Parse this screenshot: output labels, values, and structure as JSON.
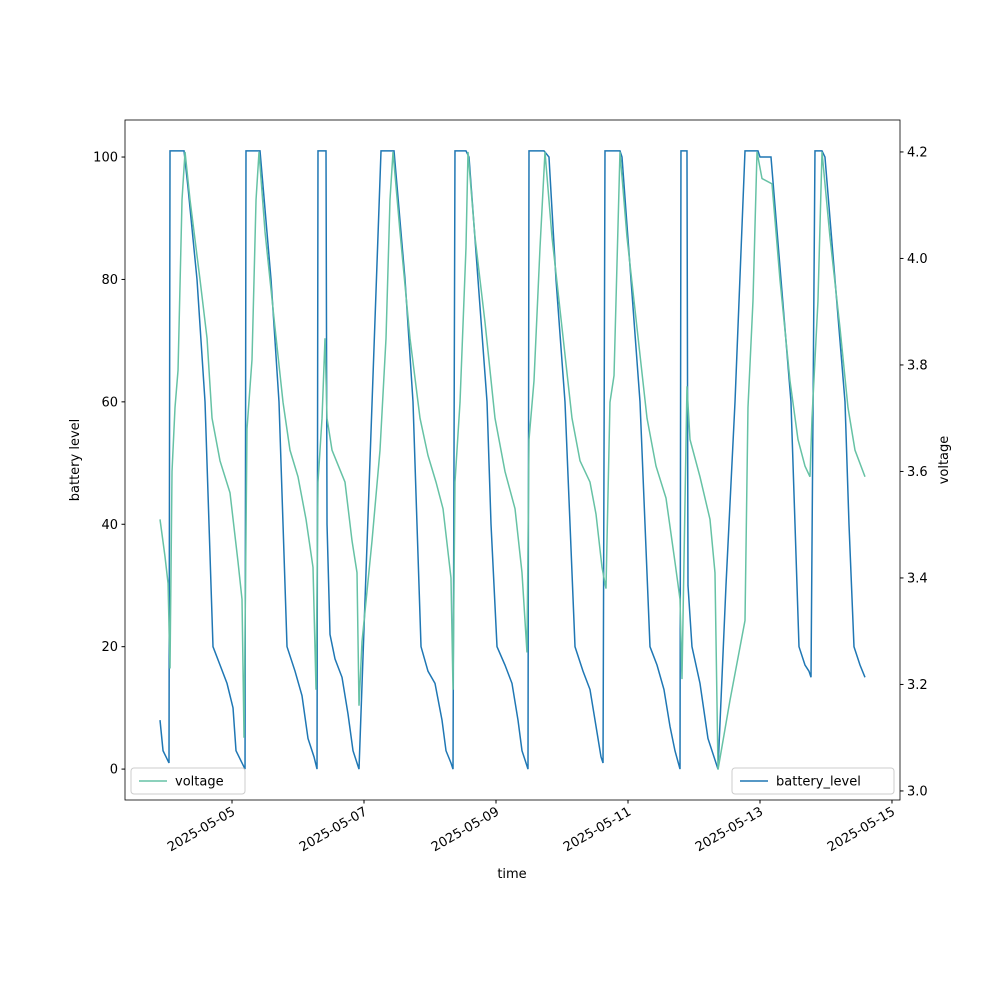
{
  "chart_data": {
    "type": "line",
    "xlabel": "time",
    "ylabel": "battery level",
    "y2label": "voltage",
    "xlim": [
      "2025-05-03T09:05",
      "2025-05-15T02:55"
    ],
    "xticks": [
      "2025-05-05",
      "2025-05-07",
      "2025-05-09",
      "2025-05-11",
      "2025-05-13",
      "2025-05-15"
    ],
    "ylim": [
      -5.05,
      106.05
    ],
    "yticks": [
      0,
      20,
      40,
      60,
      80,
      100
    ],
    "y2lim": [
      2.983,
      4.26
    ],
    "y2ticks": [
      {
        "value": 3,
        "label": "3.0"
      },
      3.2,
      3.4,
      3.6,
      3.8,
      {
        "value": 4,
        "label": "4.0"
      },
      4.2
    ],
    "series": [
      {
        "name": "battery_level",
        "color": "#1f77b4",
        "axis": "y",
        "legend_loc": "lower right",
        "x": [
          "2025-05-03T21:49",
          "2025-05-03T22:55",
          "2025-05-04T00:00",
          "2025-05-04T01:05",
          "2025-05-04T01:27",
          "2025-05-04T06:33",
          "2025-05-04T08:00",
          "2025-05-04T11:16",
          "2025-05-04T14:11",
          "2025-05-04T15:38",
          "2025-05-04T17:05",
          "2025-05-04T19:38",
          "2025-05-04T22:11",
          "2025-05-05T00:22",
          "2025-05-05T01:27",
          "2025-05-05T03:38",
          "2025-05-05T04:44",
          "2025-05-05T05:05",
          "2025-05-05T10:11",
          "2025-05-05T14:11",
          "2025-05-05T17:05",
          "2025-05-05T18:33",
          "2025-05-05T20:00",
          "2025-05-05T22:55",
          "2025-05-06T01:27",
          "2025-05-06T03:38",
          "2025-05-06T05:49",
          "2025-05-06T06:55",
          "2025-05-06T07:16",
          "2025-05-06T10:11",
          "2025-05-06T10:33",
          "2025-05-06T11:38",
          "2025-05-06T13:27",
          "2025-05-06T16:00",
          "2025-05-06T18:11",
          "2025-05-06T20:00",
          "2025-05-06T21:27",
          "2025-05-06T22:11",
          "2025-05-07T06:11",
          "2025-05-07T10:55",
          "2025-05-07T14:55",
          "2025-05-07T17:49",
          "2025-05-07T19:16",
          "2025-05-07T20:44",
          "2025-05-07T23:16",
          "2025-05-08T01:49",
          "2025-05-08T04:22",
          "2025-05-08T05:49",
          "2025-05-08T07:38",
          "2025-05-08T08:22",
          "2025-05-08T09:05",
          "2025-05-08T13:05",
          "2025-05-08T14:11",
          "2025-05-08T17:27",
          "2025-05-08T20:44",
          "2025-05-08T22:11",
          "2025-05-09T00:22",
          "2025-05-09T03:16",
          "2025-05-09T05:49",
          "2025-05-09T08:00",
          "2025-05-09T09:27",
          "2025-05-09T10:55",
          "2025-05-09T11:38",
          "2025-05-09T12:00",
          "2025-05-09T17:27",
          "2025-05-09T19:16",
          "2025-05-09T21:49",
          "2025-05-10T01:05",
          "2025-05-10T02:55",
          "2025-05-10T04:44",
          "2025-05-10T07:38",
          "2025-05-10T10:11",
          "2025-05-10T12:44",
          "2025-05-10T14:11",
          "2025-05-10T14:55",
          "2025-05-10T15:38",
          "2025-05-10T21:05",
          "2025-05-10T21:49",
          "2025-05-11T01:05",
          "2025-05-11T04:22",
          "2025-05-11T06:11",
          "2025-05-11T08:00",
          "2025-05-11T10:33",
          "2025-05-11T13:05",
          "2025-05-11T15:16",
          "2025-05-11T17:05",
          "2025-05-11T18:55",
          "2025-05-11T19:16",
          "2025-05-11T21:27",
          "2025-05-11T21:49",
          "2025-05-11T23:16",
          "2025-05-12T02:11",
          "2025-05-12T05:05",
          "2025-05-12T08:00",
          "2025-05-12T08:44",
          "2025-05-12T11:38",
          "2025-05-12T14:55",
          "2025-05-12T18:33",
          "2025-05-12T23:16",
          "2025-05-13T00:00",
          "2025-05-13T04:00",
          "2025-05-13T07:38",
          "2025-05-13T11:16",
          "2025-05-13T12:44",
          "2025-05-13T14:11",
          "2025-05-13T16:22",
          "2025-05-13T17:49",
          "2025-05-13T18:33",
          "2025-05-13T20:00",
          "2025-05-13T22:33",
          "2025-05-13T23:38",
          "2025-05-14T03:16",
          "2025-05-14T06:55",
          "2025-05-14T08:22",
          "2025-05-14T10:11",
          "2025-05-14T12:22",
          "2025-05-14T14:11"
        ],
        "values": [
          8,
          3,
          2,
          1,
          101,
          101,
          95,
          80,
          60,
          40,
          20,
          17,
          14,
          10,
          3,
          1,
          0,
          101,
          101,
          80,
          60,
          40,
          20,
          16,
          12,
          5,
          2,
          0,
          101,
          101,
          40,
          22,
          18,
          15,
          9,
          3,
          1,
          0,
          101,
          101,
          80,
          60,
          40,
          20,
          16,
          14,
          8,
          3,
          1,
          0,
          101,
          101,
          100,
          80,
          60,
          40,
          20,
          17,
          14,
          8,
          3,
          1,
          0,
          101,
          101,
          100,
          80,
          60,
          40,
          20,
          16,
          13,
          6,
          2,
          1,
          101,
          101,
          100,
          80,
          60,
          40,
          20,
          17,
          13,
          7,
          3,
          0,
          101,
          101,
          30,
          20,
          14,
          5,
          1,
          0,
          30,
          60,
          101,
          101,
          100,
          100,
          80,
          60,
          40,
          20,
          17,
          16,
          15,
          101,
          101,
          100,
          80,
          60,
          40,
          20,
          17,
          15
        ]
      },
      {
        "name": "voltage",
        "color": "#66c2a5",
        "axis": "y2",
        "legend_loc": "lower left",
        "x": [
          "2025-05-03T21:49",
          "2025-05-03T23:38",
          "2025-05-04T00:44",
          "2025-05-04T01:27",
          "2025-05-04T02:11",
          "2025-05-04T03:16",
          "2025-05-04T04:22",
          "2025-05-04T05:49",
          "2025-05-04T06:55",
          "2025-05-04T08:44",
          "2025-05-04T12:22",
          "2025-05-04T14:55",
          "2025-05-04T16:44",
          "2025-05-04T19:38",
          "2025-05-04T23:16",
          "2025-05-05T02:11",
          "2025-05-05T03:38",
          "2025-05-05T04:22",
          "2025-05-05T05:27",
          "2025-05-05T07:16",
          "2025-05-05T08:44",
          "2025-05-05T09:49",
          "2025-05-05T12:00",
          "2025-05-05T15:38",
          "2025-05-05T18:33",
          "2025-05-05T21:05",
          "2025-05-06T00:00",
          "2025-05-06T02:55",
          "2025-05-06T05:27",
          "2025-05-06T06:33",
          "2025-05-06T07:16",
          "2025-05-06T08:44",
          "2025-05-06T09:49",
          "2025-05-06T10:33",
          "2025-05-06T12:22",
          "2025-05-06T17:05",
          "2025-05-06T19:38",
          "2025-05-06T21:27",
          "2025-05-06T22:11",
          "2025-05-06T23:16",
          "2025-05-07T02:55",
          "2025-05-07T05:49",
          "2025-05-07T08:00",
          "2025-05-07T09:27",
          "2025-05-07T10:33",
          "2025-05-07T13:05",
          "2025-05-07T16:44",
          "2025-05-07T20:22",
          "2025-05-07T23:16",
          "2025-05-08T02:11",
          "2025-05-08T04:44",
          "2025-05-08T07:38",
          "2025-05-08T08:22",
          "2025-05-08T09:05",
          "2025-05-08T10:55",
          "2025-05-08T13:05",
          "2025-05-08T13:49",
          "2025-05-08T16:22",
          "2025-05-08T20:00",
          "2025-05-08T23:38",
          "2025-05-09T03:16",
          "2025-05-09T06:55",
          "2025-05-09T09:27",
          "2025-05-09T11:16",
          "2025-05-09T12:00",
          "2025-05-09T13:49",
          "2025-05-09T16:00",
          "2025-05-09T17:49",
          "2025-05-09T20:22",
          "2025-05-10T00:00",
          "2025-05-10T03:38",
          "2025-05-10T06:33",
          "2025-05-10T10:11",
          "2025-05-10T12:22",
          "2025-05-10T14:33",
          "2025-05-10T16:00",
          "2025-05-10T17:27",
          "2025-05-10T18:55",
          "2025-05-10T21:05",
          "2025-05-10T23:38",
          "2025-05-11T03:16",
          "2025-05-11T06:55",
          "2025-05-11T10:11",
          "2025-05-11T13:49",
          "2025-05-11T17:05",
          "2025-05-11T18:55",
          "2025-05-11T19:38",
          "2025-05-11T21:27",
          "2025-05-11T22:33",
          "2025-05-12T02:11",
          "2025-05-12T05:49",
          "2025-05-12T07:38",
          "2025-05-12T08:44",
          "2025-05-12T13:05",
          "2025-05-12T18:33",
          "2025-05-12T19:38",
          "2025-05-12T21:27",
          "2025-05-12T22:55",
          "2025-05-13T00:44",
          "2025-05-13T04:22",
          "2025-05-13T07:16",
          "2025-05-13T10:55",
          "2025-05-13T13:49",
          "2025-05-13T16:22",
          "2025-05-13T18:11",
          "2025-05-13T18:55",
          "2025-05-13T21:05",
          "2025-05-13T22:33",
          "2025-05-14T01:27",
          "2025-05-14T05:05",
          "2025-05-14T08:00",
          "2025-05-14T10:33",
          "2025-05-14T14:11"
        ],
        "values": [
          3.51,
          3.44,
          3.39,
          3.23,
          3.6,
          3.72,
          3.79,
          4.11,
          4.2,
          4.11,
          3.96,
          3.85,
          3.7,
          3.62,
          3.56,
          3.43,
          3.36,
          3.1,
          3.68,
          3.81,
          4.11,
          4.2,
          4.05,
          3.87,
          3.73,
          3.64,
          3.59,
          3.51,
          3.42,
          3.19,
          3.58,
          3.7,
          3.85,
          3.7,
          3.64,
          3.58,
          3.47,
          3.41,
          3.16,
          3.28,
          3.47,
          3.64,
          3.85,
          4.11,
          4.2,
          4.05,
          3.85,
          3.7,
          3.63,
          3.58,
          3.53,
          3.4,
          3.19,
          3.58,
          3.73,
          4.02,
          4.2,
          4.04,
          3.88,
          3.7,
          3.6,
          3.53,
          3.41,
          3.26,
          3.66,
          3.77,
          4.02,
          4.2,
          4.04,
          3.87,
          3.7,
          3.62,
          3.58,
          3.52,
          3.42,
          3.38,
          3.73,
          3.78,
          4.2,
          4.04,
          3.87,
          3.7,
          3.61,
          3.55,
          3.43,
          3.36,
          3.21,
          3.76,
          3.66,
          3.59,
          3.51,
          3.41,
          3.04,
          3.17,
          3.32,
          3.72,
          3.92,
          4.2,
          4.15,
          4.14,
          3.96,
          3.77,
          3.66,
          3.61,
          3.59,
          3.7,
          3.92,
          4.2,
          4.04,
          3.87,
          3.72,
          3.64,
          3.59
        ]
      }
    ]
  }
}
